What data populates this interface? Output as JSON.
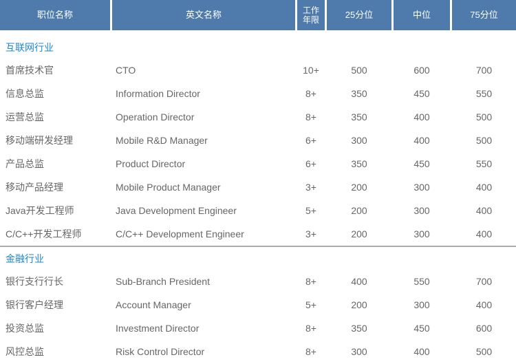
{
  "colors": {
    "header_bg": "#4e7bac",
    "header_text": "#ffffff",
    "section_title": "#1e87cd",
    "body_text": "#666666",
    "divider": "#ababab",
    "background": "#ffffff"
  },
  "table": {
    "columns": [
      "职位名称",
      "英文名称",
      "工作年限",
      "25分位",
      "中位",
      "75分位"
    ],
    "sections": [
      {
        "title": "互联网行业",
        "rows": [
          [
            "首席技术官",
            "CTO",
            "10+",
            "500",
            "600",
            "700"
          ],
          [
            "信息总监",
            "Information Director",
            "8+",
            "350",
            "450",
            "550"
          ],
          [
            "运营总监",
            "Operation Director",
            "8+",
            "350",
            "400",
            "500"
          ],
          [
            "移动端研发经理",
            "Mobile R&D Manager",
            "6+",
            "300",
            "400",
            "500"
          ],
          [
            "产品总监",
            "Product Director",
            "6+",
            "350",
            "450",
            "550"
          ],
          [
            "移动产品经理",
            "Mobile Product Manager",
            "3+",
            "200",
            "300",
            "400"
          ],
          [
            "Java开发工程师",
            "Java Development Engineer",
            "5+",
            "200",
            "300",
            "400"
          ],
          [
            "C/C++开发工程师",
            "C/C++ Development Engineer",
            "3+",
            "200",
            "300",
            "400"
          ]
        ]
      },
      {
        "title": "金融行业",
        "rows": [
          [
            "银行支行行长",
            "Sub-Branch President",
            "8+",
            "400",
            "550",
            "700"
          ],
          [
            "银行客户经理",
            "Account Manager",
            "5+",
            "200",
            "300",
            "400"
          ],
          [
            "投资总监",
            "Investment Director",
            "8+",
            "350",
            "450",
            "600"
          ],
          [
            "风控总监",
            "Risk Control Director",
            "8+",
            "300",
            "400",
            "500"
          ]
        ]
      }
    ]
  }
}
